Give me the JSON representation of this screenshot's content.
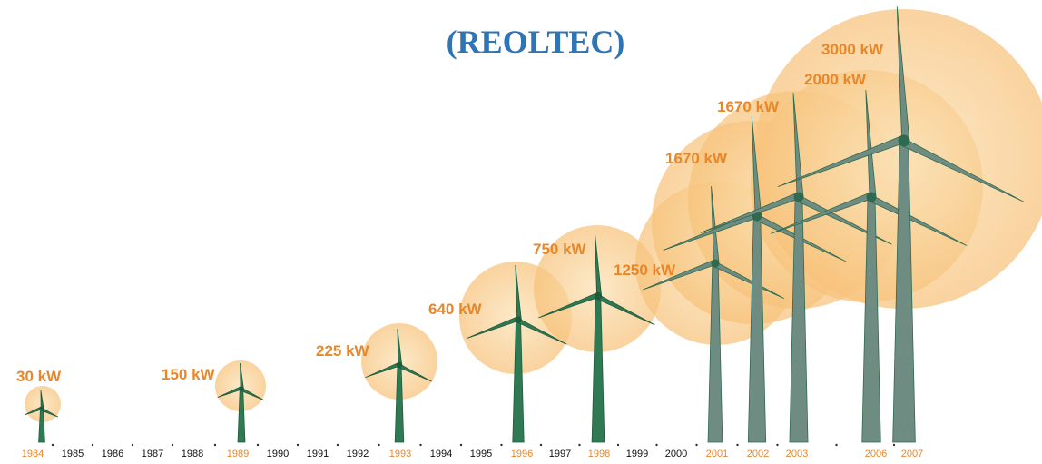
{
  "title": "(REOLTEC)",
  "timeline": {
    "years": [
      {
        "label": "1984",
        "highlight": true
      },
      {
        "label": "1985",
        "highlight": false
      },
      {
        "label": "1986",
        "highlight": false
      },
      {
        "label": "1987",
        "highlight": false
      },
      {
        "label": "1988",
        "highlight": false
      },
      {
        "label": "1989",
        "highlight": true
      },
      {
        "label": "1990",
        "highlight": false
      },
      {
        "label": "1991",
        "highlight": false
      },
      {
        "label": "1992",
        "highlight": false
      },
      {
        "label": "1993",
        "highlight": true
      },
      {
        "label": "1994",
        "highlight": false
      },
      {
        "label": "1995",
        "highlight": false
      },
      {
        "label": "1996",
        "highlight": true
      },
      {
        "label": "1997",
        "highlight": false
      },
      {
        "label": "1998",
        "highlight": true
      },
      {
        "label": "1999",
        "highlight": false
      },
      {
        "label": "2000",
        "highlight": false
      },
      {
        "label": "2001",
        "highlight": true
      },
      {
        "label": "2002",
        "highlight": true
      },
      {
        "label": "2003",
        "highlight": true
      },
      {
        "label": "2006",
        "highlight": true
      },
      {
        "label": "2007",
        "highlight": true
      }
    ]
  },
  "turbines": [
    {
      "label": "30 kW"
    },
    {
      "label": "150 kW"
    },
    {
      "label": "225 kW"
    },
    {
      "label": "640 kW"
    },
    {
      "label": "750 kW"
    },
    {
      "label": "1250 kW"
    },
    {
      "label": "1670 kW"
    },
    {
      "label": "1670 kW"
    },
    {
      "label": "2000 kW"
    },
    {
      "label": "3000 kW"
    }
  ]
}
